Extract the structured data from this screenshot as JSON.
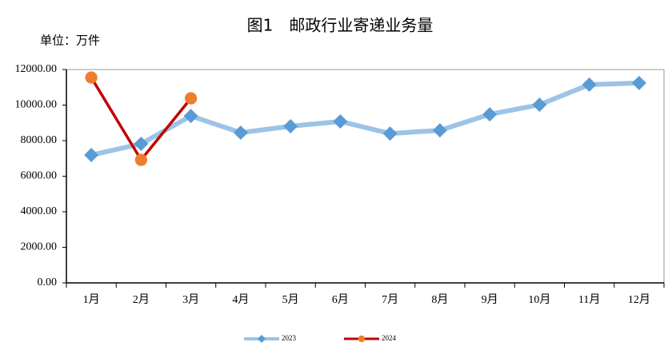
{
  "chart_data": {
    "type": "line",
    "title": "图1　邮政行业寄递业务量",
    "unit_label": "单位：万件",
    "categories": [
      "1月",
      "2月",
      "3月",
      "4月",
      "5月",
      "6月",
      "7月",
      "8月",
      "9月",
      "10月",
      "11月",
      "12月"
    ],
    "series": [
      {
        "name": "2023",
        "color": "#9dc3e6",
        "marker_color": "#5b9bd5",
        "marker": "diamond",
        "values": [
          7190,
          7820,
          9390,
          8450,
          8810,
          9080,
          8400,
          8580,
          9480,
          10020,
          11150,
          11240
        ]
      },
      {
        "name": "2024",
        "color": "#c00000",
        "marker_color": "#ed7d31",
        "marker": "circle",
        "values": [
          11550,
          6920,
          10380,
          null,
          null,
          null,
          null,
          null,
          null,
          null,
          null,
          null
        ]
      }
    ],
    "ylim": [
      0,
      12000
    ],
    "yticks": [
      {
        "value": 0,
        "label": "0.00"
      },
      {
        "value": 2000,
        "label": "2000.00"
      },
      {
        "value": 4000,
        "label": "4000.00"
      },
      {
        "value": 6000,
        "label": "6000.00"
      },
      {
        "value": 8000,
        "label": "8000.00"
      },
      {
        "value": 10000,
        "label": "10000.00"
      },
      {
        "value": 12000,
        "label": "12000.00"
      }
    ],
    "grid": false,
    "legend": "bottom"
  }
}
